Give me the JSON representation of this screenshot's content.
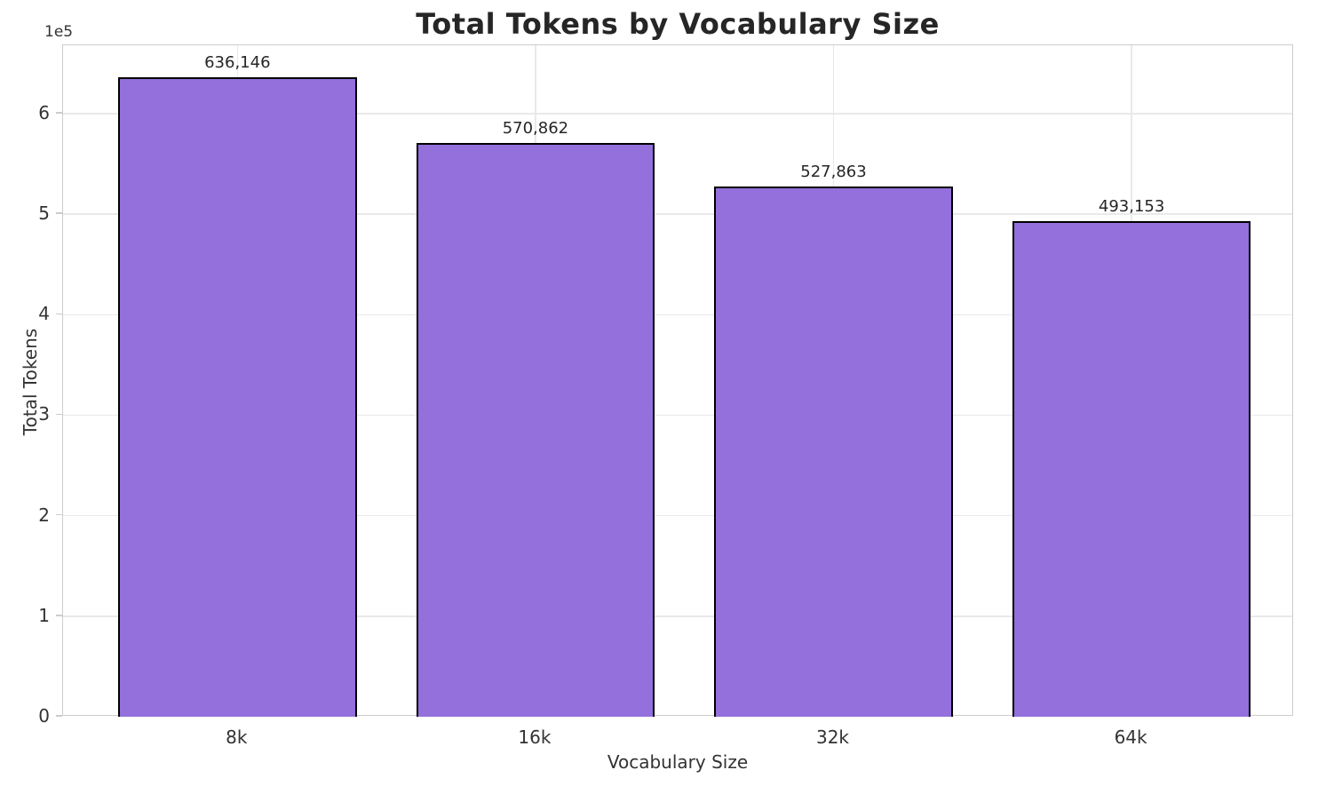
{
  "chart_data": {
    "type": "bar",
    "title": "Total Tokens by Vocabulary Size",
    "xlabel": "Vocabulary Size",
    "ylabel": "Total Tokens",
    "categories": [
      "8k",
      "16k",
      "32k",
      "64k"
    ],
    "values": [
      636146,
      570862,
      527863,
      493153
    ],
    "bar_labels": [
      "636,146",
      "570,862",
      "527,863",
      "493,153"
    ],
    "ylim": [
      0,
      668000
    ],
    "yticks": [
      0,
      100000,
      200000,
      300000,
      400000,
      500000,
      600000
    ],
    "ytick_labels": [
      "0",
      "1",
      "2",
      "3",
      "4",
      "5",
      "6"
    ],
    "y_offset_text": "1e5",
    "grid": true,
    "legend_position": "none",
    "colors": {
      "bar_fill": "#9370db",
      "bar_edge": "#000000",
      "grid_line": "#e9e9e9",
      "spine": "#cccccc",
      "title_text": "#262626",
      "label_text": "#333333"
    }
  }
}
